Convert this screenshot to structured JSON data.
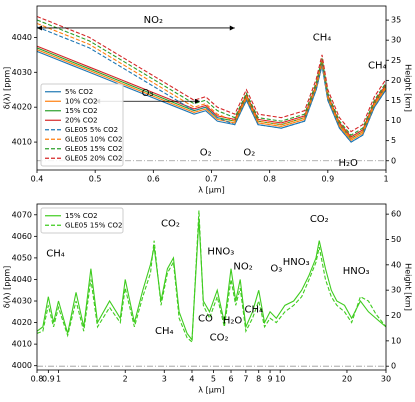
{
  "chart_data": [
    {
      "type": "line",
      "xlabel": "λ [μm]",
      "ylabel": "δ(λ) [ppm]",
      "y2label": "Height [km]",
      "xlim": [
        0.4,
        1.0
      ],
      "xticks": [
        0.4,
        0.5,
        0.6,
        0.7,
        0.8,
        0.9,
        1
      ],
      "ylim": [
        4002,
        4049
      ],
      "yticks": [
        4010,
        4020,
        4030,
        4040
      ],
      "y2lim": [
        -2.3,
        38.5
      ],
      "y2ticks": [
        0,
        5,
        10,
        15,
        20,
        25,
        30,
        35
      ],
      "hline_y2": 0,
      "legend": "lower left",
      "log_x": false,
      "x": [
        0.4,
        0.43,
        0.46,
        0.49,
        0.52,
        0.55,
        0.58,
        0.61,
        0.64,
        0.67,
        0.69,
        0.71,
        0.74,
        0.76,
        0.78,
        0.82,
        0.86,
        0.88,
        0.89,
        0.9,
        0.92,
        0.94,
        0.96,
        0.98,
        1.0
      ],
      "series": [
        {
          "name": "5% CO2",
          "color": "#1f77b4",
          "linestyle": "solid",
          "values": [
            4036,
            4034,
            4032,
            4030,
            4028,
            4026,
            4024,
            4022,
            4020,
            4018,
            4019,
            4016,
            4015,
            4022,
            4015,
            4014,
            4016,
            4025,
            4032,
            4022,
            4014,
            4010,
            4012,
            4020,
            4025
          ]
        },
        {
          "name": "10% CO2",
          "color": "#ff7f0e",
          "linestyle": "solid",
          "values": [
            4036.5,
            4034.5,
            4032.5,
            4030.5,
            4028.5,
            4026.5,
            4024.5,
            4022.5,
            4020.5,
            4018.5,
            4019.5,
            4016.5,
            4015.5,
            4022.5,
            4015.5,
            4014.5,
            4016.5,
            4025.5,
            4032.5,
            4022.5,
            4014.5,
            4010.5,
            4012.5,
            4020.5,
            4025.5
          ]
        },
        {
          "name": "15% CO2",
          "color": "#2ca02c",
          "linestyle": "solid",
          "values": [
            4037,
            4035,
            4033,
            4031,
            4029,
            4027,
            4025,
            4023,
            4021,
            4019,
            4020,
            4017,
            4016,
            4023,
            4016,
            4015,
            4017,
            4026,
            4033,
            4023,
            4015,
            4011,
            4013,
            4021,
            4026
          ]
        },
        {
          "name": "20% CO2",
          "color": "#d62728",
          "linestyle": "solid",
          "values": [
            4037.5,
            4035.5,
            4033.5,
            4031.5,
            4029.5,
            4027.5,
            4025.5,
            4023.5,
            4021.5,
            4019.5,
            4020.5,
            4017.5,
            4016.5,
            4023.5,
            4016.5,
            4015.5,
            4017.5,
            4026.5,
            4033.5,
            4023.5,
            4015.5,
            4011.5,
            4013.5,
            4021.5,
            4026.5
          ]
        },
        {
          "name": "GLE05 5% CO2",
          "color": "#1f77b4",
          "linestyle": "dashed",
          "values": [
            4043,
            4041,
            4039,
            4037,
            4034,
            4031,
            4028,
            4025,
            4022,
            4019,
            4020,
            4017,
            4015,
            4022,
            4015,
            4014,
            4016,
            4025,
            4032,
            4022,
            4014,
            4010,
            4012,
            4020,
            4025
          ]
        },
        {
          "name": "GLE05 10% CO2",
          "color": "#ff7f0e",
          "linestyle": "dashed",
          "values": [
            4044,
            4042,
            4040,
            4038,
            4035,
            4032,
            4029,
            4026,
            4023,
            4020,
            4021,
            4018,
            4016,
            4023,
            4016,
            4015,
            4017,
            4026,
            4033,
            4023,
            4015,
            4011,
            4013,
            4021,
            4026
          ]
        },
        {
          "name": "GLE05 15% CO2",
          "color": "#2ca02c",
          "linestyle": "dashed",
          "values": [
            4045,
            4043,
            4041,
            4039,
            4036,
            4033,
            4030,
            4027,
            4024,
            4021,
            4022,
            4019,
            4017,
            4024,
            4017,
            4016,
            4018,
            4027,
            4034,
            4024,
            4016,
            4012,
            4014,
            4022,
            4027
          ]
        },
        {
          "name": "GLE05 20% CO2",
          "color": "#d62728",
          "linestyle": "dashed",
          "values": [
            4046,
            4044,
            4042,
            4040,
            4037,
            4034,
            4031,
            4028,
            4025,
            4022,
            4023,
            4020,
            4018,
            4025,
            4018,
            4017,
            4019,
            4028,
            4035,
            4025,
            4017,
            4013,
            4015,
            4023,
            4028
          ]
        }
      ],
      "annotations": [
        {
          "text": "NO₂",
          "x": 0.6,
          "y": 4045,
          "span": [
            0.4,
            0.74
          ]
        },
        {
          "text": "O₃",
          "x": 0.59,
          "y": 4024,
          "span": [
            0.5,
            0.68
          ]
        },
        {
          "text": "O₂",
          "x": 0.69,
          "y": 4007
        },
        {
          "text": "O₂",
          "x": 0.765,
          "y": 4007
        },
        {
          "text": "CH₄",
          "x": 0.89,
          "y": 4040
        },
        {
          "text": "CH₄",
          "x": 0.985,
          "y": 4032
        },
        {
          "text": "H₂O",
          "x": 0.935,
          "y": 4004
        }
      ]
    },
    {
      "type": "line",
      "xlabel": "λ [μm]",
      "ylabel": "δ(λ) [ppm]",
      "y2label": "Height [km]",
      "xlim": [
        0.8,
        30
      ],
      "xticks": [
        0.8,
        0.9,
        1,
        2,
        3,
        4,
        5,
        6,
        7,
        8,
        9,
        10,
        20,
        30
      ],
      "ylim": [
        3998,
        4075
      ],
      "yticks": [
        4000,
        4010,
        4020,
        4030,
        4040,
        4050,
        4060,
        4070
      ],
      "y2lim": [
        -1.5,
        64
      ],
      "y2ticks": [
        0,
        10,
        20,
        30,
        40,
        50,
        60
      ],
      "hline_y2": 0,
      "legend": "upper left",
      "log_x": true,
      "x": [
        0.8,
        0.85,
        0.9,
        0.95,
        1.0,
        1.1,
        1.2,
        1.3,
        1.4,
        1.5,
        1.7,
        1.9,
        2.0,
        2.2,
        2.4,
        2.6,
        2.7,
        2.9,
        3.1,
        3.3,
        3.5,
        3.8,
        4.0,
        4.3,
        4.5,
        4.8,
        5.2,
        5.6,
        6.0,
        6.3,
        6.6,
        7.0,
        7.5,
        8.0,
        8.5,
        9.0,
        9.6,
        10.5,
        11.5,
        12.5,
        13.5,
        14.5,
        15.0,
        16,
        17,
        18,
        19.5,
        21,
        23,
        25,
        27,
        30
      ],
      "series": [
        {
          "name": "15% CO2",
          "color": "#3fcc1f",
          "linestyle": "solid",
          "values": [
            4016,
            4018,
            4032,
            4020,
            4030,
            4015,
            4034,
            4018,
            4045,
            4020,
            4030,
            4022,
            4040,
            4020,
            4035,
            4047,
            4055,
            4030,
            4045,
            4050,
            4025,
            4015,
            4012,
            4068,
            4030,
            4025,
            4035,
            4020,
            4045,
            4030,
            4040,
            4018,
            4025,
            4035,
            4020,
            4025,
            4022,
            4028,
            4030,
            4035,
            4042,
            4050,
            4058,
            4045,
            4035,
            4030,
            4028,
            4022,
            4030,
            4025,
            4022,
            4018
          ]
        },
        {
          "name": "GLE05 15% CO2",
          "color": "#3fcc1f",
          "linestyle": "dashed",
          "values": [
            4015,
            4016,
            4028,
            4018,
            4027,
            4014,
            4030,
            4016,
            4040,
            4018,
            4027,
            4020,
            4036,
            4018,
            4032,
            4043,
            4058,
            4028,
            4043,
            4048,
            4022,
            4013,
            4011,
            4072,
            4028,
            4022,
            4032,
            4018,
            4040,
            4028,
            4036,
            4016,
            4022,
            4030,
            4018,
            4022,
            4020,
            4025,
            4028,
            4032,
            4040,
            4048,
            4055,
            4040,
            4032,
            4028,
            4025,
            4020,
            4032,
            4030,
            4024,
            4018
          ]
        }
      ],
      "annotations": [
        {
          "text": "CH₄",
          "x": 0.97,
          "y": 4052
        },
        {
          "text": "CO₂",
          "x": 3.2,
          "y": 4066
        },
        {
          "text": "CH₄",
          "x": 3.0,
          "y": 4016
        },
        {
          "text": "CO",
          "x": 4.6,
          "y": 4022
        },
        {
          "text": "CO₂",
          "x": 5.3,
          "y": 4013
        },
        {
          "text": "H₂O",
          "x": 6.1,
          "y": 4021
        },
        {
          "text": "CH₄",
          "x": 7.6,
          "y": 4026
        },
        {
          "text": "NO₂",
          "x": 6.8,
          "y": 4046
        },
        {
          "text": "HNO₃",
          "x": 5.4,
          "y": 4053
        },
        {
          "text": "O₃",
          "x": 9.6,
          "y": 4045
        },
        {
          "text": "HNO₃",
          "x": 11.8,
          "y": 4048
        },
        {
          "text": "CO₂",
          "x": 15,
          "y": 4068
        },
        {
          "text": "HNO₃",
          "x": 22,
          "y": 4044
        }
      ]
    }
  ]
}
